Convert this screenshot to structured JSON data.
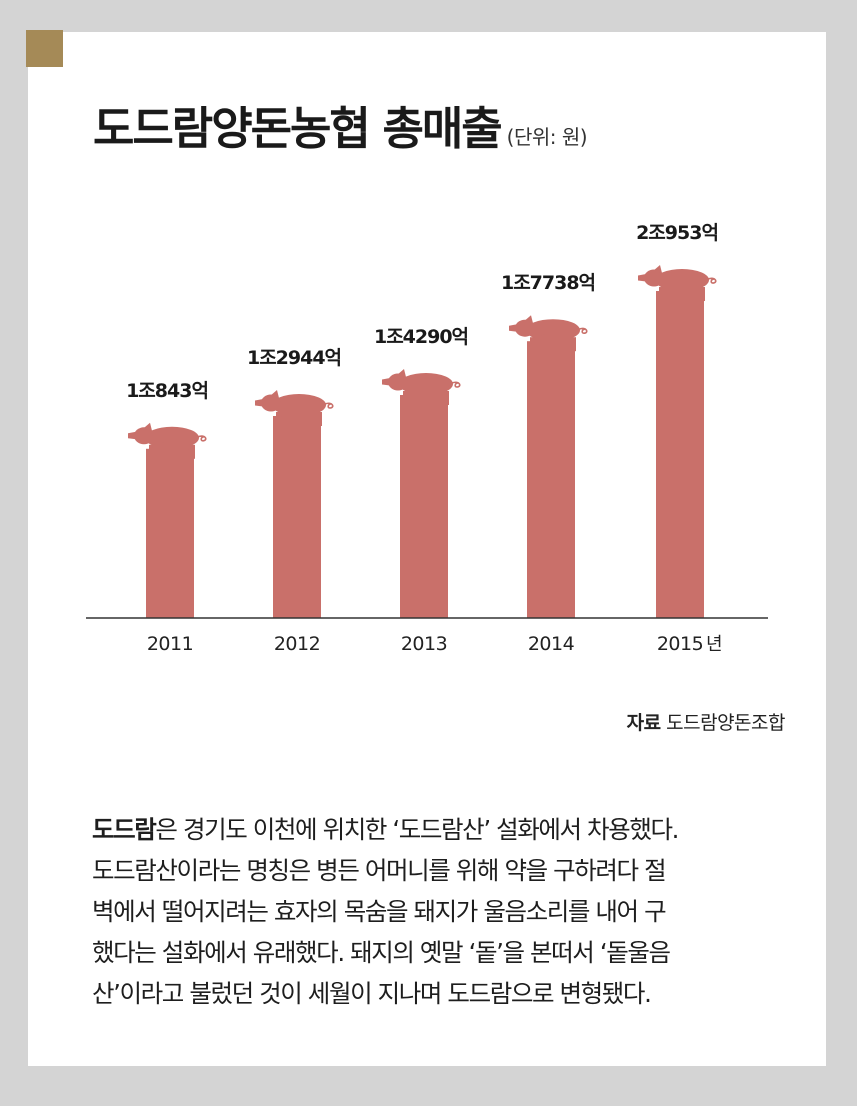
{
  "title": "도드람양돈농협 총매출",
  "unit": "(단위: 원)",
  "colors": {
    "bar": "#c9706a",
    "pig": "#c9706a",
    "accent": "#a58a57",
    "axis": "#333333",
    "text": "#1a1a1a",
    "background": "#d4d4d4",
    "panel": "#ffffff"
  },
  "chart_data": {
    "type": "bar",
    "categories": [
      "2011",
      "2012",
      "2013",
      "2014",
      "2015"
    ],
    "values": [
      10843,
      12944,
      14290,
      17738,
      20953
    ],
    "value_labels": [
      "1조843억",
      "1조2944억",
      "1조4290억",
      "1조7738억",
      "2조953억"
    ],
    "x_unit": "년",
    "title": "도드람양돈농협 총매출",
    "unit_label": "(단위: 원)",
    "ylim": [
      0,
      22300
    ],
    "grid": false,
    "legend": "none",
    "icon": "pig-icon"
  },
  "source": {
    "label": "자료",
    "text": "도드람양돈조합"
  },
  "description": {
    "lead": "도드람",
    "lines": [
      "은 경기도 이천에 위치한 ‘도드람산’ 설화에서 차용했다.",
      "도드람산이라는 명칭은 병든 어머니를 위해 약을 구하려다 절",
      "벽에서 떨어지려는 효자의 목숨을 돼지가 울음소리를 내어 구",
      "했다는 설화에서 유래했다. 돼지의 옛말 ‘돝’을 본떠서 ‘돝울음",
      "산’이라고 불렀던 것이 세월이 지나며 도드람으로 변형됐다."
    ]
  }
}
